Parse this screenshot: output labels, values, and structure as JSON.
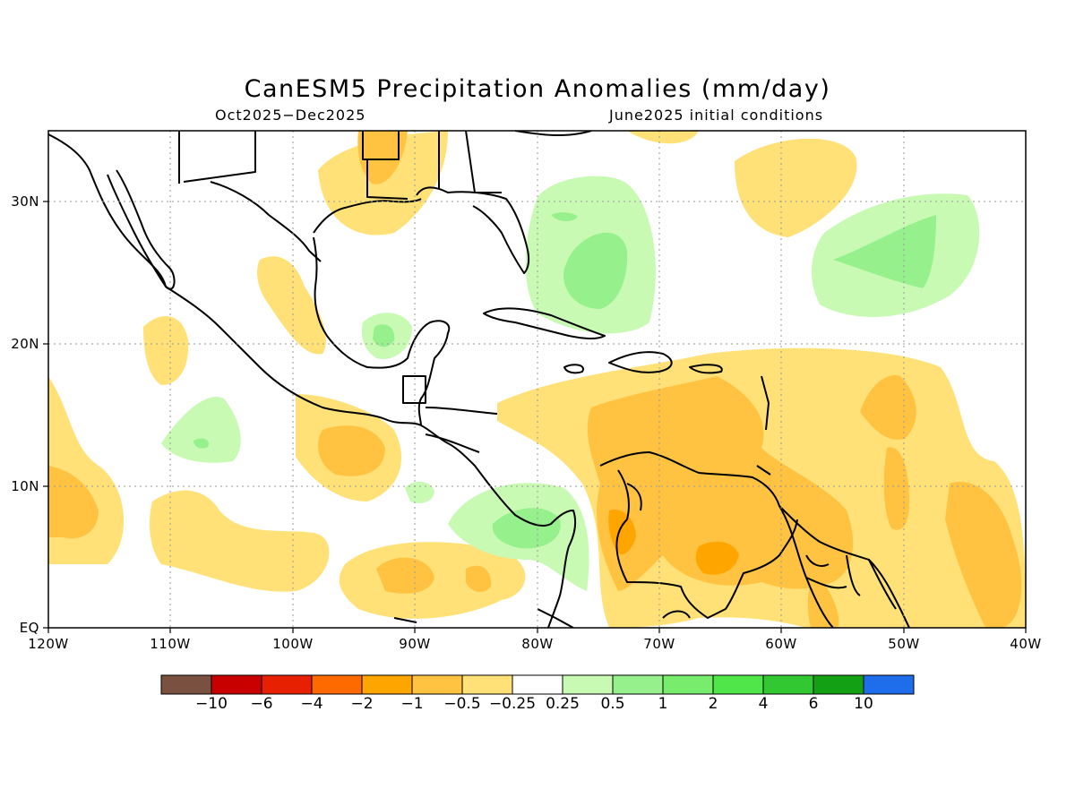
{
  "title": "CanESM5 Precipitation Anomalies (mm/day)",
  "subtitle_left": "Oct2025−Dec2025",
  "subtitle_right": "June2025 initial conditions",
  "map": {
    "lon_range": [
      -120,
      -40
    ],
    "lat_range": [
      0,
      35
    ],
    "lat_ticks": [
      "30N",
      "20N",
      "10N",
      "EQ"
    ],
    "lon_ticks": [
      "120W",
      "110W",
      "100W",
      "90W",
      "80W",
      "70W",
      "60W",
      "50W",
      "40W"
    ],
    "grid": true
  },
  "colorbar": {
    "colors": [
      "#7a5040",
      "#c80000",
      "#e62000",
      "#ff6a00",
      "#ffa500",
      "#ffc341",
      "#ffe178",
      "#ffffff",
      "#c8fab4",
      "#96f08c",
      "#78ec6c",
      "#50e64a",
      "#32c832",
      "#14a014",
      "#1e6eeb"
    ],
    "labels": [
      "−10",
      "−6",
      "−4",
      "−2",
      "−1",
      "−0.5",
      "−0.25",
      "0.25",
      "0.5",
      "1",
      "2",
      "4",
      "6",
      "10"
    ]
  }
}
